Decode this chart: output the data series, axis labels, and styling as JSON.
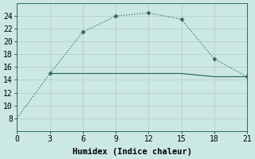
{
  "xlabel": "Humidex (Indice chaleur)",
  "line1_x": [
    0,
    3,
    6,
    9,
    12,
    15,
    18,
    21
  ],
  "line1_y": [
    8,
    15,
    21.5,
    24,
    24.5,
    23.5,
    17.3,
    14.5
  ],
  "line1_marker_x": [
    3,
    6,
    9,
    12,
    15,
    18,
    21
  ],
  "line1_marker_y": [
    15,
    21.5,
    24,
    24.5,
    23.5,
    17.3,
    14.5
  ],
  "line2_x": [
    3,
    6,
    9,
    12,
    15,
    18,
    21
  ],
  "line2_y": [
    15,
    15,
    15,
    15,
    15,
    14.5,
    14.5
  ],
  "line_color": "#2e6b5e",
  "bg_color": "#cce8e4",
  "grid_color": "#b8cec9",
  "xlim": [
    0,
    21
  ],
  "ylim": [
    6,
    26
  ],
  "xticks": [
    0,
    3,
    6,
    9,
    12,
    15,
    18,
    21
  ],
  "yticks": [
    8,
    10,
    12,
    14,
    16,
    18,
    20,
    22,
    24
  ],
  "marker": "D",
  "markersize": 2.5,
  "linewidth": 0.9,
  "tick_fontsize": 7,
  "label_fontsize": 7.5
}
